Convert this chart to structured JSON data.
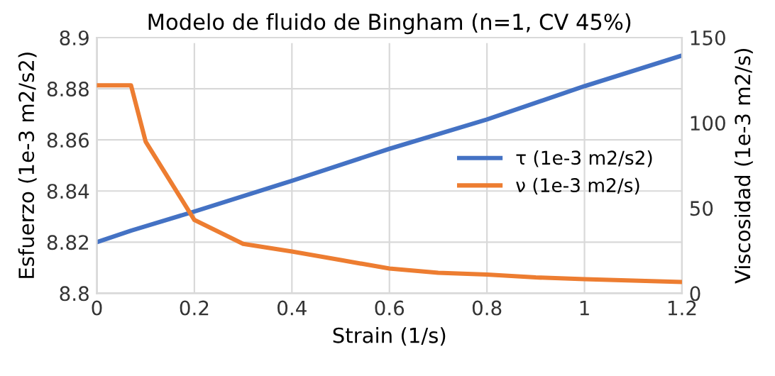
{
  "chart_data": {
    "type": "line",
    "title": "Modelo de fluido de Bingham (n=1, CV 45%)",
    "xlabel": "Strain (1/s)",
    "ylabel": "Esfuerzo (1e-3 m2/s2)",
    "y2label": "Viscosidad (1e-3 m2/s)",
    "series": [
      {
        "name": "τ (1e-3 m2/s2)",
        "color": "#4472c4",
        "x": [
          0,
          0.07,
          0.2,
          0.4,
          0.6,
          0.8,
          1.0,
          1.2
        ],
        "values": [
          8.82,
          8.8245,
          8.832,
          8.844,
          8.8565,
          8.868,
          8.881,
          8.893
        ]
      },
      {
        "name": "ν (1e-3 m2/s)",
        "color": "#ed7d31",
        "axis": "y2",
        "x": [
          0,
          0.07,
          0.1,
          0.2,
          0.3,
          0.4,
          0.5,
          0.6,
          0.7,
          0.8,
          0.9,
          1.0,
          1.2
        ],
        "values": [
          122,
          122,
          89,
          43,
          29,
          24.5,
          19.5,
          14.5,
          12,
          11,
          9.3,
          8.3,
          6.6
        ]
      }
    ],
    "xlim": [
      0,
      1.2
    ],
    "xticks": [
      0,
      0.2,
      0.4,
      0.6,
      0.8,
      1,
      1.2
    ],
    "ylim": [
      8.8,
      8.9
    ],
    "yticks": [
      8.8,
      8.82,
      8.84,
      8.86,
      8.88,
      8.9
    ],
    "y2lim": [
      0,
      150
    ],
    "y2ticks": [
      0,
      50,
      100,
      150
    ],
    "grid": true,
    "legend": "right",
    "marker": "none",
    "line_style": "solid"
  }
}
